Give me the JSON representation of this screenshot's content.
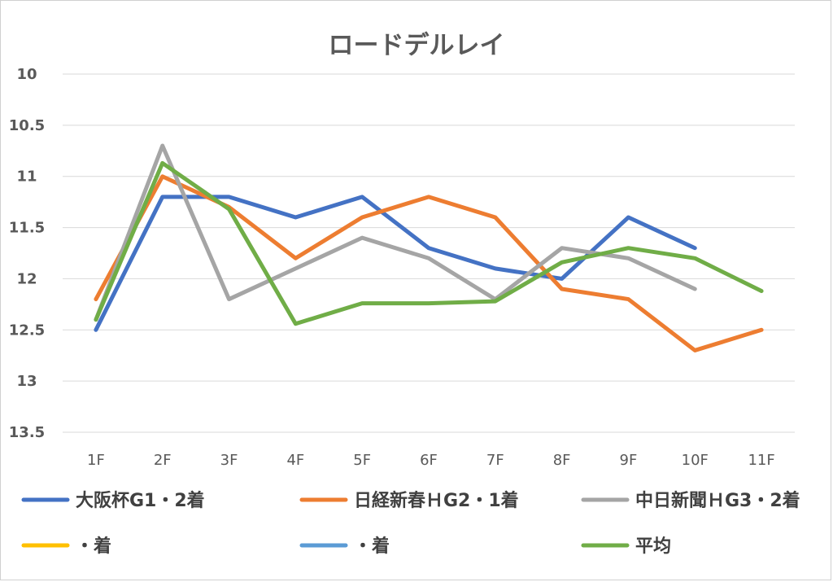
{
  "chart_data": {
    "type": "line",
    "title": "ロードデルレイ",
    "xlabel": "",
    "ylabel": "",
    "categories": [
      "1F",
      "2F",
      "3F",
      "4F",
      "5F",
      "6F",
      "7F",
      "8F",
      "9F",
      "10F",
      "11F"
    ],
    "y_ticks": [
      "10",
      "10.5",
      "11",
      "11.5",
      "12",
      "12.5",
      "13",
      "13.5"
    ],
    "ylim": [
      10,
      13.5
    ],
    "y_reversed": true,
    "grid": true,
    "legend_position": "bottom",
    "series": [
      {
        "name": "大阪杯G1・2着",
        "color": "#4472C4",
        "values": [
          12.5,
          11.2,
          11.2,
          11.4,
          11.2,
          11.7,
          11.9,
          12.0,
          11.4,
          11.7,
          null
        ]
      },
      {
        "name": "日経新春ＨG2・1着",
        "color": "#ED7D31",
        "values": [
          12.2,
          11.0,
          11.3,
          11.8,
          11.4,
          11.2,
          11.4,
          12.1,
          12.2,
          12.7,
          12.5
        ]
      },
      {
        "name": "中日新聞ＨG3・2着",
        "color": "#A5A5A5",
        "values": [
          12.4,
          10.7,
          12.2,
          11.9,
          11.6,
          11.8,
          12.2,
          11.7,
          11.8,
          12.1,
          null
        ]
      },
      {
        "name": "・着",
        "color": "#FFC000",
        "values": [
          null,
          null,
          null,
          null,
          null,
          null,
          null,
          null,
          null,
          null,
          null
        ]
      },
      {
        "name": "・着",
        "color": "#5B9BD5",
        "values": [
          null,
          null,
          null,
          null,
          null,
          null,
          null,
          null,
          null,
          null,
          null
        ]
      },
      {
        "name": "平均",
        "color": "#70AD47",
        "values": [
          12.4,
          10.87,
          11.32,
          12.44,
          12.24,
          12.24,
          12.22,
          11.84,
          11.7,
          11.8,
          12.12
        ]
      }
    ]
  }
}
